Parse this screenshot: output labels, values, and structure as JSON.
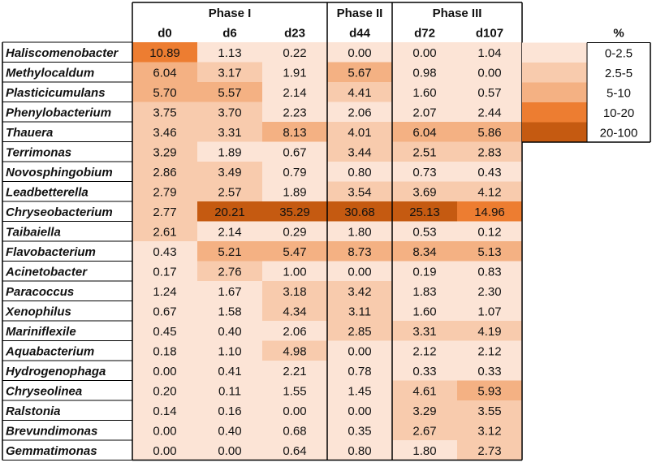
{
  "chart_data": {
    "type": "heatmap",
    "phases": [
      {
        "label": "Phase I",
        "columns": [
          "d0",
          "d6",
          "d23"
        ]
      },
      {
        "label": "Phase II",
        "columns": [
          "d44"
        ]
      },
      {
        "label": "Phase III",
        "columns": [
          "d72",
          "d107"
        ]
      }
    ],
    "columns": [
      "d0",
      "d6",
      "d23",
      "d44",
      "d72",
      "d107"
    ],
    "rows": [
      {
        "name": "Haliscomenobacter",
        "values": [
          "10.89",
          "1.13",
          "0.22",
          "0.00",
          "0.00",
          "1.04"
        ]
      },
      {
        "name": "Methylocaldum",
        "values": [
          "6.04",
          "3.17",
          "1.91",
          "5.67",
          "0.98",
          "0.00"
        ]
      },
      {
        "name": "Plasticicumulans",
        "values": [
          "5.70",
          "5.57",
          "2.14",
          "4.41",
          "1.60",
          "0.57"
        ]
      },
      {
        "name": "Phenylobacterium",
        "values": [
          "3.75",
          "3.70",
          "2.23",
          "2.06",
          "2.07",
          "2.44"
        ]
      },
      {
        "name": "Thauera",
        "values": [
          "3.46",
          "3.31",
          "8.13",
          "4.01",
          "6.04",
          "5.86"
        ]
      },
      {
        "name": "Terrimonas",
        "values": [
          "3.29",
          "1.89",
          "0.67",
          "3.44",
          "2.51",
          "2.83"
        ]
      },
      {
        "name": "Novosphingobium",
        "values": [
          "2.86",
          "3.49",
          "0.79",
          "0.80",
          "0.73",
          "0.43"
        ]
      },
      {
        "name": "Leadbetterella",
        "values": [
          "2.79",
          "2.57",
          "1.89",
          "3.54",
          "3.69",
          "4.12"
        ]
      },
      {
        "name": "Chryseobacterium",
        "values": [
          "2.77",
          "20.21",
          "35.29",
          "30.68",
          "25.13",
          "14.96"
        ]
      },
      {
        "name": "Taibaiella",
        "values": [
          "2.61",
          "2.14",
          "0.29",
          "1.80",
          "0.53",
          "0.12"
        ]
      },
      {
        "name": "Flavobacterium",
        "values": [
          "0.43",
          "5.21",
          "5.47",
          "8.73",
          "8.34",
          "5.13"
        ]
      },
      {
        "name": "Acinetobacter",
        "values": [
          "0.17",
          "2.76",
          "1.00",
          "0.00",
          "0.19",
          "0.83"
        ]
      },
      {
        "name": "Paracoccus",
        "values": [
          "1.24",
          "1.67",
          "3.18",
          "3.42",
          "1.83",
          "2.30"
        ]
      },
      {
        "name": "Xenophilus",
        "values": [
          "0.67",
          "1.58",
          "4.34",
          "3.11",
          "1.60",
          "1.07"
        ]
      },
      {
        "name": "Mariniflexile",
        "values": [
          "0.45",
          "0.40",
          "2.06",
          "2.85",
          "3.31",
          "4.19"
        ]
      },
      {
        "name": "Aquabacterium",
        "values": [
          "0.18",
          "1.10",
          "4.98",
          "0.00",
          "2.12",
          "2.12"
        ]
      },
      {
        "name": "Hydrogenophaga",
        "values": [
          "0.00",
          "0.41",
          "2.21",
          "0.78",
          "0.33",
          "0.33"
        ]
      },
      {
        "name": "Chryseolinea",
        "values": [
          "0.20",
          "0.11",
          "1.55",
          "1.45",
          "4.61",
          "5.93"
        ]
      },
      {
        "name": "Ralstonia",
        "values": [
          "0.14",
          "0.16",
          "0.00",
          "0.00",
          "3.29",
          "3.55"
        ]
      },
      {
        "name": "Brevundimonas",
        "values": [
          "0.00",
          "0.40",
          "0.68",
          "0.35",
          "2.67",
          "3.12"
        ]
      },
      {
        "name": "Gemmatimonas",
        "values": [
          "0.00",
          "0.00",
          "0.64",
          "0.80",
          "1.80",
          "2.73"
        ]
      }
    ],
    "legend": {
      "title": "%",
      "bins": [
        {
          "label": "0-2.5",
          "min": 0,
          "max": 2.5,
          "color": "#fce4d6"
        },
        {
          "label": "2.5-5",
          "min": 2.5,
          "max": 5,
          "color": "#f8cbad"
        },
        {
          "label": "5-10",
          "min": 5,
          "max": 10,
          "color": "#f4b183"
        },
        {
          "label": "10-20",
          "min": 10,
          "max": 20,
          "color": "#ed7d31"
        },
        {
          "label": "20-100",
          "min": 20,
          "max": 100,
          "color": "#c55a11"
        }
      ]
    }
  },
  "colors": {
    "bin_0_2_5": "#fce4d6",
    "bin_2_5_5": "#f8cbad",
    "bin_5_10": "#f4b183",
    "bin_10_20": "#ed7d31",
    "bin_20_100": "#c55a11",
    "grid": "#000000"
  }
}
